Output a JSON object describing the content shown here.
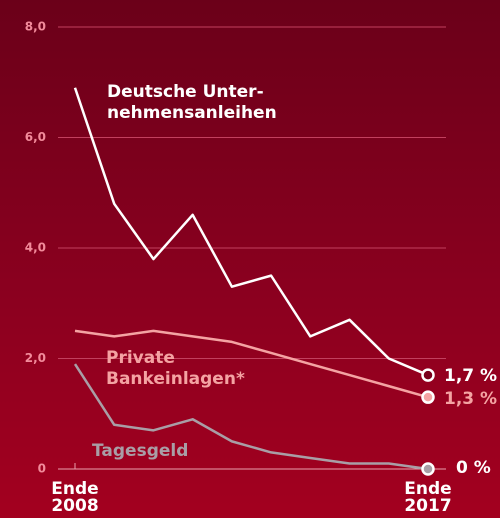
{
  "chart_data": {
    "type": "line",
    "categories": [
      "Ende 2008",
      null,
      null,
      null,
      null,
      null,
      null,
      null,
      null,
      "Ende 2017"
    ],
    "series": [
      {
        "name": "Deutsche Unter- nehmensanleihen",
        "color": "#ffffff",
        "values": [
          6.9,
          4.8,
          3.8,
          4.6,
          3.3,
          3.5,
          2.4,
          2.7,
          2.0,
          1.7
        ],
        "value_labels": [
          null,
          null,
          null,
          null,
          null,
          null,
          null,
          null,
          null,
          "1,7 %"
        ]
      },
      {
        "name": "Private Bankeinlagen*",
        "color": "#f4a3a3",
        "values": [
          2.5,
          2.4,
          2.5,
          2.4,
          2.3,
          2.1,
          1.9,
          1.7,
          1.5,
          1.3
        ],
        "value_labels": [
          null,
          null,
          null,
          null,
          null,
          null,
          null,
          null,
          null,
          "1,3 %"
        ]
      },
      {
        "name": "Tagesgeld",
        "color": "#a99ea6",
        "values": [
          1.9,
          0.8,
          0.7,
          0.9,
          0.5,
          0.3,
          0.2,
          0.1,
          0.1,
          0
        ],
        "value_labels": [
          null,
          null,
          null,
          null,
          null,
          null,
          null,
          null,
          null,
          "0 %"
        ]
      }
    ],
    "ylim": [
      0,
      8
    ],
    "yticks": [
      0,
      {
        "value": 2,
        "label": "2,0"
      },
      {
        "value": 4,
        "label": "4,0"
      },
      {
        "value": 6,
        "label": "6,0"
      },
      {
        "value": 8,
        "label": "8,0"
      }
    ],
    "grid": true
  }
}
